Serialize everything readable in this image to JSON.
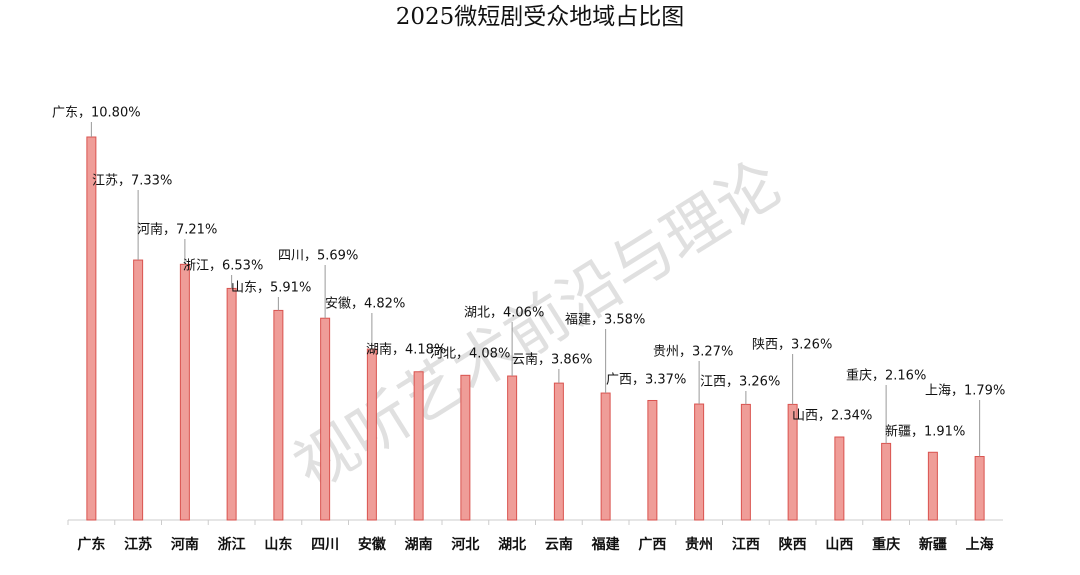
{
  "chart_data": {
    "type": "bar",
    "title": "2025微短剧受众地域占比图",
    "watermark": "视听艺术前沿与理论",
    "categories": [
      "广东",
      "江苏",
      "河南",
      "浙江",
      "山东",
      "四川",
      "安徽",
      "湖南",
      "河北",
      "湖北",
      "云南",
      "福建",
      "广西",
      "贵州",
      "江西",
      "陕西",
      "山西",
      "重庆",
      "新疆",
      "上海"
    ],
    "values": [
      10.8,
      7.33,
      7.21,
      6.53,
      5.91,
      5.69,
      4.82,
      4.18,
      4.08,
      4.06,
      3.86,
      3.58,
      3.37,
      3.27,
      3.26,
      3.26,
      2.34,
      2.16,
      1.91,
      1.79
    ],
    "value_labels": [
      "广东，10.80%",
      "江苏，7.33%",
      "河南，7.21%",
      "浙江，6.53%",
      "山东，5.91%",
      "四川，5.69%",
      "安徽，4.82%",
      "湖南，4.18%",
      "河北，4.08%",
      "湖北，4.06%",
      "云南，3.86%",
      "福建，3.58%",
      "广西，3.37%",
      "贵州，3.27%",
      "江西，3.26%",
      "陕西，3.26%",
      "山西，2.34%",
      "重庆，2.16%",
      "新疆，1.91%",
      "上海，1.79%"
    ],
    "color": "#ef9d98"
  }
}
